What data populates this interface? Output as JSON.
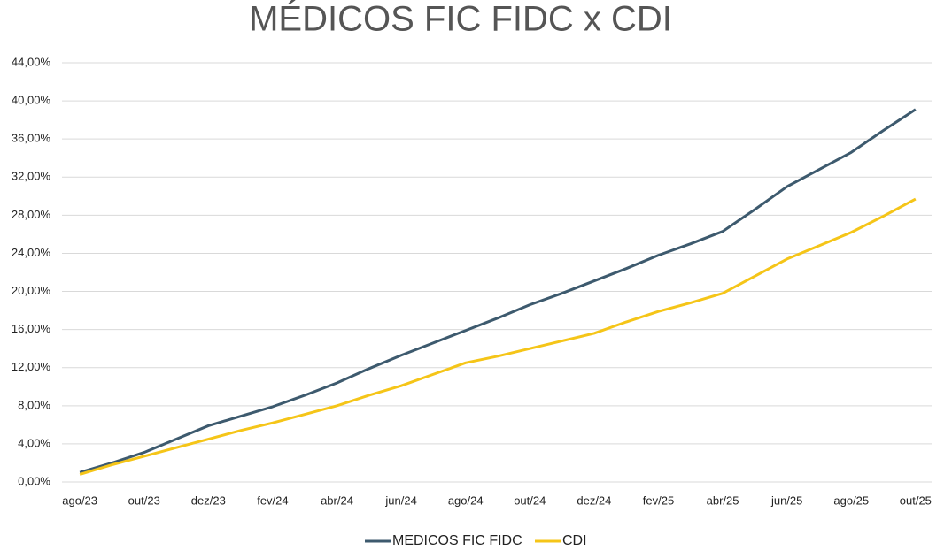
{
  "chart_data": {
    "type": "line",
    "title": "MÉDICOS FIC FIDC x CDI",
    "categories": [
      "ago/23",
      null,
      "out/23",
      null,
      "dez/23",
      null,
      "fev/24",
      null,
      "abr/24",
      null,
      "jun/24",
      null,
      "ago/24",
      null,
      "out/24",
      null,
      "dez/24",
      null,
      "fev/25",
      null,
      "abr/25",
      null,
      "jun/25",
      null,
      "ago/25",
      null,
      "out/25"
    ],
    "series": [
      {
        "name": "MEDICOS FIC FIDC",
        "color": "#3d5a6e",
        "values": [
          1.0,
          2.0,
          3.1,
          4.5,
          5.9,
          6.9,
          7.9,
          9.1,
          10.4,
          11.9,
          13.3,
          14.6,
          15.9,
          17.2,
          18.6,
          19.8,
          21.1,
          22.4,
          23.8,
          25.0,
          26.3,
          28.6,
          31.0,
          32.8,
          34.6,
          36.9,
          39.1
        ]
      },
      {
        "name": "CDI",
        "color": "#f5c518",
        "values": [
          0.8,
          1.8,
          2.7,
          3.6,
          4.5,
          5.4,
          6.2,
          7.1,
          8.0,
          9.1,
          10.1,
          11.3,
          12.5,
          13.2,
          14.0,
          14.8,
          15.6,
          16.8,
          17.9,
          18.8,
          19.8,
          21.6,
          23.4,
          24.8,
          26.2,
          27.9,
          29.7
        ]
      }
    ],
    "ylim": [
      0,
      44
    ],
    "yticks": [
      {
        "value": 0,
        "label": "0,00%"
      },
      {
        "value": 4,
        "label": "4,00%"
      },
      {
        "value": 8,
        "label": "8,00%"
      },
      {
        "value": 12,
        "label": "12,00%"
      },
      {
        "value": 16,
        "label": "16,00%"
      },
      {
        "value": 20,
        "label": "20,00%"
      },
      {
        "value": 24,
        "label": "24,00%"
      },
      {
        "value": 28,
        "label": "28,00%"
      },
      {
        "value": 32,
        "label": "32,00%"
      },
      {
        "value": 36,
        "label": "36,00%"
      },
      {
        "value": 40,
        "label": "40,00%"
      },
      {
        "value": 44,
        "label": "44,00%"
      }
    ],
    "grid": true,
    "legend": "bottom"
  }
}
